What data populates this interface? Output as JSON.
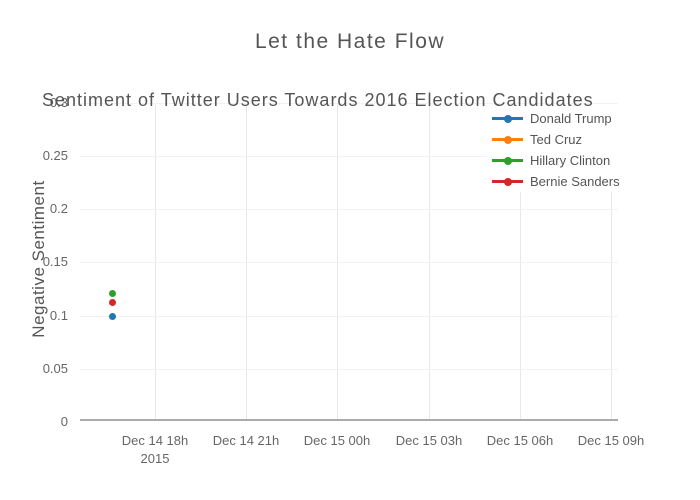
{
  "page": {
    "title": "Let the Hate Flow"
  },
  "chart_data": {
    "type": "scatter",
    "title": "Sentiment of Twitter Users Towards 2016 Election Candidates",
    "suptitle": "Let the Hate Flow",
    "xlabel": "",
    "ylabel": "Negative Sentiment",
    "ylim": [
      0,
      0.3
    ],
    "grid": true,
    "legend_position": "top-right",
    "x_axis_note": "time axis, 3-hour ticks, Dec 14-15 2015",
    "x_tick_labels": [
      "Dec 14 18h",
      "Dec 14 21h",
      "Dec 15 00h",
      "Dec 15 03h",
      "Dec 15 06h",
      "Dec 15 09h"
    ],
    "x_tick_sublabels": [
      "2015",
      "",
      "",
      "",
      "",
      ""
    ],
    "y_tick_labels": [
      "0",
      "0.05",
      "0.1",
      "0.15",
      "0.2",
      "0.25",
      "0.3"
    ],
    "y_tick_values": [
      0,
      0.05,
      0.1,
      0.15,
      0.2,
      0.25,
      0.3
    ],
    "series": [
      {
        "name": "Donald Trump",
        "color": "#1f77b4",
        "x_display": [
          "Dec 14 2015 ~16:30"
        ],
        "x_hours": [
          16.6
        ],
        "y": [
          0.099
        ]
      },
      {
        "name": "Ted Cruz",
        "color": "#ff7f0e",
        "x_display": [],
        "x_hours": [],
        "y": []
      },
      {
        "name": "Hillary Clinton",
        "color": "#2ca02c",
        "x_display": [
          "Dec 14 2015 ~16:30"
        ],
        "x_hours": [
          16.6
        ],
        "y": [
          0.121
        ]
      },
      {
        "name": "Bernie Sanders",
        "color": "#d62728",
        "x_display": [
          "Dec 14 2015 ~16:30"
        ],
        "x_hours": [
          16.6
        ],
        "y": [
          0.112
        ]
      }
    ]
  }
}
